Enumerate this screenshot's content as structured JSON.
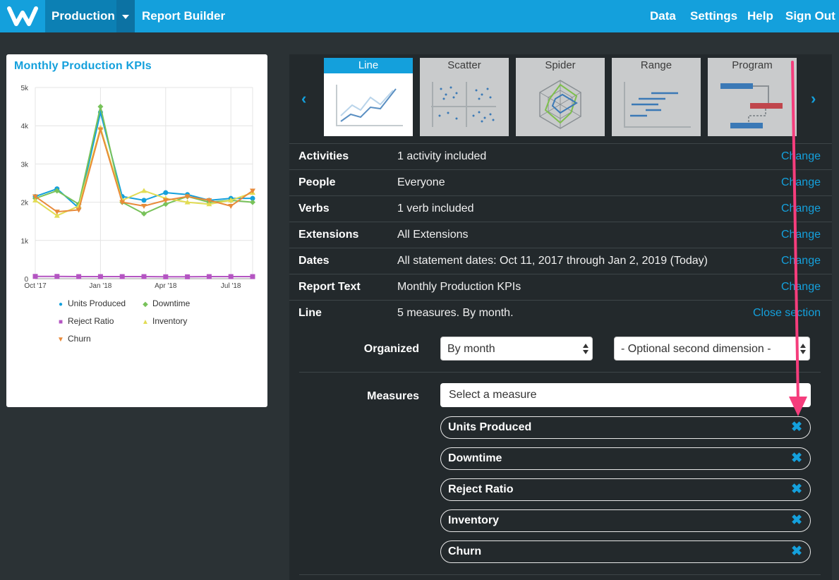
{
  "nav": {
    "logo": "W",
    "project": "Production",
    "report_builder": "Report Builder",
    "right": [
      "Data",
      "Settings",
      "Help",
      "Sign Out"
    ]
  },
  "chart_card": {
    "title": "Monthly Production KPIs"
  },
  "chart_data": {
    "type": "line",
    "title": "Monthly Production KPIs",
    "x": [
      "Oct '17",
      "Nov '17",
      "Dec '17",
      "Jan '18",
      "Feb '18",
      "Mar '18",
      "Apr '18",
      "May '18",
      "Jun '18",
      "Jul '18",
      "Aug '18"
    ],
    "x_tick_labels": [
      "Oct '17",
      "Jan '18",
      "Apr '18",
      "Jul '18"
    ],
    "y_tick_labels": [
      "0",
      "1k",
      "2k",
      "3k",
      "4k",
      "5k"
    ],
    "ylim": [
      0,
      5000
    ],
    "grid": true,
    "legend": "bottom",
    "series": [
      {
        "name": "Units Produced",
        "color": "#14a0dc",
        "marker": "circle",
        "values": [
          2150,
          2350,
          1850,
          4350,
          2150,
          2050,
          2250,
          2200,
          2050,
          2100,
          2100
        ]
      },
      {
        "name": "Downtime",
        "color": "#78c25a",
        "marker": "diamond",
        "values": [
          2100,
          2300,
          1950,
          4500,
          2000,
          1700,
          1950,
          2150,
          2000,
          2050,
          2000
        ]
      },
      {
        "name": "Reject Ratio",
        "color": "#b455c2",
        "marker": "square",
        "values": [
          60,
          60,
          55,
          55,
          55,
          55,
          50,
          50,
          55,
          55,
          55
        ]
      },
      {
        "name": "Inventory",
        "color": "#e2dc54",
        "marker": "triangle",
        "values": [
          2050,
          1650,
          1900,
          3950,
          2050,
          2300,
          2100,
          2000,
          1950,
          2050,
          2250
        ]
      },
      {
        "name": "Churn",
        "color": "#e88a3a",
        "marker": "tri-down",
        "values": [
          2150,
          1750,
          1800,
          3900,
          2000,
          1900,
          2050,
          2150,
          2050,
          1900,
          2300
        ]
      }
    ]
  },
  "chart_types": {
    "prev_icon": "chevron-left-icon",
    "next_icon": "chevron-right-icon",
    "items": [
      {
        "label": "Line",
        "icon": "line-chart-icon",
        "active": true
      },
      {
        "label": "Scatter",
        "icon": "scatter-chart-icon",
        "active": false
      },
      {
        "label": "Spider",
        "icon": "spider-chart-icon",
        "active": false
      },
      {
        "label": "Range",
        "icon": "range-chart-icon",
        "active": false
      },
      {
        "label": "Program",
        "icon": "program-chart-icon",
        "active": false
      }
    ]
  },
  "settings_rows": [
    {
      "label": "Activities",
      "value": "1 activity included",
      "link": "Change"
    },
    {
      "label": "People",
      "value": "Everyone",
      "link": "Change"
    },
    {
      "label": "Verbs",
      "value": "1 verb included",
      "link": "Change"
    },
    {
      "label": "Extensions",
      "value": "All Extensions",
      "link": "Change"
    },
    {
      "label": "Dates",
      "value": "All statement dates: Oct 11, 2017 through Jan 2, 2019 (Today)",
      "link": "Change"
    },
    {
      "label": "Report Text",
      "value": "Monthly Production KPIs",
      "link": "Change"
    },
    {
      "label": "Line",
      "value": "5 measures. By month.",
      "link": "Close section"
    }
  ],
  "line_section": {
    "organized_label": "Organized",
    "organized_value": "By month",
    "second_dimension": "- Optional second dimension -",
    "measures_label": "Measures",
    "measure_placeholder": "Select a measure",
    "measures": [
      "Units Produced",
      "Downtime",
      "Reject Ratio",
      "Inventory",
      "Churn"
    ],
    "remove_icon": "close-icon"
  },
  "annotation": {
    "color": "#f53d7c"
  }
}
